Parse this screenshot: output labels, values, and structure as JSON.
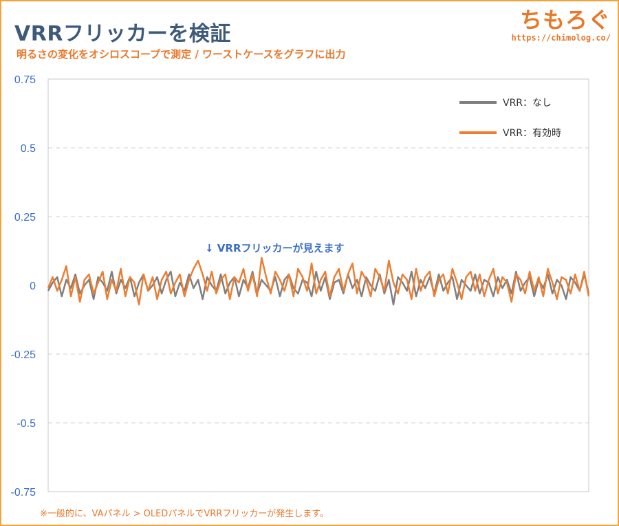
{
  "header": {
    "title": "VRRフリッカーを検証",
    "subtitle": "明るさの変化をオシロスコープで測定 / ワーストケースをグラフに出力"
  },
  "logo": {
    "text": "ちもろぐ",
    "url": "https://chimolog.co/"
  },
  "footer": {
    "note": "※一般的に、VAパネル > OLEDパネルでVRRフリッカーが発生します。"
  },
  "colors": {
    "accent": "#e8782a",
    "title": "#3d5a7a",
    "axis_tick": "#3a6fc6",
    "series_off": "#7f7f7f",
    "series_on": "#ed7d31",
    "border": "#f2a33a"
  },
  "chart_data": {
    "type": "line",
    "title": "",
    "xlabel": "",
    "ylabel": "",
    "ylim": [
      -0.75,
      0.75
    ],
    "yticks": [
      0.75,
      0.5,
      0.25,
      0,
      -0.25,
      -0.5,
      -0.75
    ],
    "ytick_labels": [
      "0.75",
      "0.5",
      "0.25",
      "0",
      "-0.25",
      "-0.5",
      "-0.75"
    ],
    "grid": true,
    "legend": "top-right",
    "annotation": "↓ VRRフリッカーが見えます",
    "series": [
      {
        "name": "VRR：なし",
        "color": "#7f7f7f",
        "values": [
          -0.02,
          0.01,
          0.03,
          -0.04,
          0.02,
          -0.01,
          0.04,
          -0.03,
          0.0,
          0.02,
          -0.05,
          0.03,
          0.01,
          -0.02,
          0.05,
          -0.03,
          0.02,
          -0.01,
          0.03,
          -0.04,
          0.01,
          0.04,
          -0.02,
          0.0,
          0.03,
          -0.03,
          0.02,
          0.05,
          -0.04,
          0.01,
          -0.02,
          0.04,
          -0.01,
          0.02,
          -0.05,
          0.03,
          0.0,
          -0.02,
          0.04,
          -0.03,
          0.01,
          0.03,
          -0.04,
          0.02,
          -0.01,
          0.05,
          -0.03,
          0.02,
          0.0,
          -0.02,
          0.03,
          -0.04,
          0.02,
          0.04,
          -0.01,
          -0.03,
          0.02,
          0.01,
          -0.04,
          0.05,
          -0.02,
          0.03,
          -0.05,
          0.01,
          0.02,
          -0.03,
          0.04,
          -0.01,
          0.02,
          -0.04,
          0.03,
          0.0,
          -0.02,
          0.04,
          -0.03,
          0.02,
          -0.07,
          0.03,
          0.01,
          -0.02,
          0.05,
          -0.04,
          0.02,
          -0.01,
          0.03,
          -0.03,
          0.04,
          -0.02,
          0.01,
          0.03,
          -0.05,
          0.02,
          0.0,
          -0.02,
          0.04,
          -0.03,
          0.02,
          0.01,
          -0.04,
          0.03,
          -0.01,
          0.02,
          -0.03,
          0.05,
          -0.02,
          0.01,
          0.03,
          -0.04,
          0.02,
          -0.01,
          0.04,
          -0.03,
          0.02,
          0.0,
          -0.05,
          0.03,
          0.01,
          -0.02,
          0.04,
          -0.03
        ]
      },
      {
        "name": "VRR：有効時",
        "color": "#ed7d31",
        "values": [
          -0.01,
          0.03,
          -0.02,
          0.02,
          0.07,
          -0.04,
          0.03,
          -0.06,
          0.02,
          0.04,
          -0.03,
          0.01,
          0.05,
          -0.05,
          0.02,
          -0.02,
          0.06,
          -0.04,
          0.03,
          0.01,
          -0.07,
          0.04,
          -0.02,
          0.03,
          -0.05,
          0.02,
          0.05,
          -0.03,
          0.01,
          0.04,
          -0.04,
          0.02,
          0.06,
          0.09,
          0.04,
          -0.02,
          0.05,
          -0.03,
          0.02,
          0.04,
          -0.05,
          0.03,
          0.01,
          0.06,
          -0.02,
          0.04,
          -0.04,
          0.1,
          0.03,
          -0.03,
          0.05,
          0.02,
          -0.02,
          0.04,
          -0.04,
          0.06,
          0.03,
          -0.02,
          0.08,
          -0.03,
          0.02,
          0.05,
          -0.04,
          0.03,
          0.06,
          -0.02,
          0.04,
          0.08,
          -0.03,
          0.05,
          0.02,
          -0.04,
          0.06,
          0.03,
          -0.02,
          0.09,
          0.01,
          -0.03,
          0.04,
          0.02,
          -0.05,
          0.06,
          -0.02,
          0.03,
          0.05,
          -0.04,
          0.02,
          0.04,
          -0.03,
          0.06,
          0.01,
          -0.05,
          0.03,
          0.05,
          -0.02,
          0.04,
          -0.04,
          0.02,
          0.06,
          -0.03,
          0.03,
          0.01,
          -0.06,
          0.04,
          0.02,
          -0.03,
          0.05,
          -0.02,
          0.03,
          -0.04,
          0.06,
          0.01,
          -0.05,
          0.03,
          0.02,
          -0.03,
          0.04,
          -0.02,
          0.05,
          -0.04
        ]
      }
    ]
  }
}
